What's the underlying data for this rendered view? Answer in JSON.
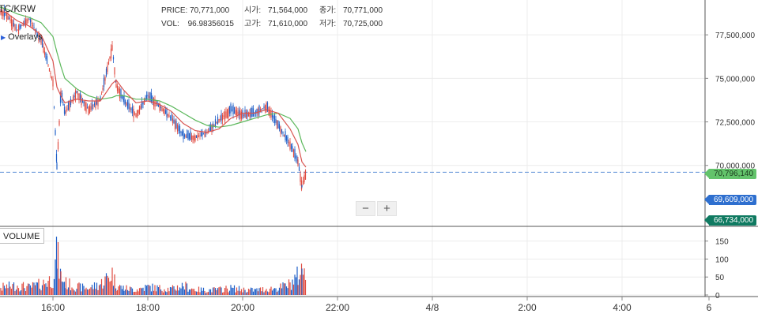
{
  "symbol": "TC/KRW",
  "overlays_label": "Overlays",
  "ohlc": {
    "price_label": "PRICE:",
    "price_value": "70,771,000",
    "open_label": "시가:",
    "open_value": "71,564,000",
    "close_label": "종가:",
    "close_value": "70,771,000",
    "vol_label": "VOL:",
    "vol_value": "96.98356015",
    "high_label": "고가:",
    "high_value": "71,610,000",
    "low_label": "저가:",
    "low_value": "70,725,000"
  },
  "zoom": {
    "minus": "−",
    "plus": "+"
  },
  "volume_label": "VOLUME",
  "price_tags": {
    "ma": "70,796,140",
    "current": "69,609,000",
    "low": "66,734,000"
  },
  "colors": {
    "up": "#e04a3f",
    "down": "#1f5fc8",
    "ma_short": "#d9534f",
    "ma_long": "#5cb85c",
    "grid": "#ececec",
    "current_line": "#5b8fd6"
  },
  "chart_data": {
    "type": "candlestick",
    "price_axis": {
      "ticks": [
        77500000,
        75000000,
        72500000,
        70000000
      ],
      "tick_labels": [
        "77,500,000",
        "75,000,000",
        "72,500,000",
        "70,000,000"
      ],
      "range": [
        66500000,
        79500000
      ]
    },
    "volume_axis": {
      "ticks": [
        150,
        100,
        50,
        0
      ],
      "tick_labels": [
        "150",
        "100",
        "50",
        "0"
      ],
      "range": [
        0,
        180
      ]
    },
    "time_axis": {
      "tick_labels": [
        "16:00",
        "18:00",
        "20:00",
        "22:00",
        "4/8",
        "2:00",
        "4:00",
        "6"
      ]
    },
    "current_price": 69609000,
    "ma_last": 70796140,
    "low_marker": 66734000,
    "series": [
      {
        "name": "price",
        "x": [
          "14:30",
          "14:45",
          "15:00",
          "15:15",
          "15:30",
          "15:45",
          "16:00",
          "16:05",
          "16:10",
          "16:15",
          "16:30",
          "16:45",
          "17:00",
          "17:15",
          "17:20",
          "17:30",
          "17:45",
          "18:00",
          "18:15",
          "18:30",
          "18:45",
          "19:00",
          "19:15",
          "19:30",
          "19:45",
          "20:00",
          "20:15",
          "20:30",
          "20:45",
          "21:00",
          "21:10",
          "21:15",
          "21:20"
        ],
        "values": [
          79100000,
          78900000,
          78700000,
          77800000,
          78400000,
          77200000,
          74800000,
          69900000,
          74200000,
          73000000,
          74200000,
          73200000,
          73800000,
          76800000,
          74600000,
          73700000,
          72900000,
          74000000,
          73400000,
          72700000,
          71700000,
          71600000,
          71900000,
          72600000,
          73200000,
          72900000,
          73000000,
          73400000,
          72300000,
          71200000,
          70200000,
          68800000,
          69609000
        ]
      },
      {
        "name": "ma_short",
        "values": [
          79000000,
          78900000,
          78800000,
          78300000,
          78000000,
          77500000,
          76000000,
          74500000,
          74000000,
          73600000,
          73800000,
          73700000,
          73700000,
          74700000,
          74900000,
          74300000,
          73600000,
          73700000,
          73500000,
          73100000,
          72400000,
          72000000,
          71900000,
          72100000,
          72700000,
          73000000,
          73000000,
          73200000,
          73000000,
          72100000,
          71200000,
          70200000,
          69900000
        ]
      },
      {
        "name": "ma_long",
        "values": [
          79400000,
          79200000,
          79000000,
          78700000,
          78500000,
          78200000,
          77400000,
          76500000,
          75700000,
          75000000,
          74400000,
          74000000,
          73800000,
          73900000,
          74000000,
          74000000,
          73800000,
          73800000,
          73700000,
          73400000,
          73000000,
          72600000,
          72300000,
          72200000,
          72300000,
          72500000,
          72700000,
          72900000,
          73000000,
          72700000,
          72100000,
          71300000,
          70796140
        ]
      },
      {
        "name": "volume",
        "values": [
          20,
          25,
          30,
          35,
          28,
          40,
          60,
          150,
          70,
          45,
          30,
          25,
          40,
          80,
          35,
          25,
          20,
          30,
          25,
          22,
          35,
          20,
          18,
          20,
          25,
          20,
          18,
          22,
          25,
          40,
          70,
          90,
          130
        ]
      }
    ]
  }
}
